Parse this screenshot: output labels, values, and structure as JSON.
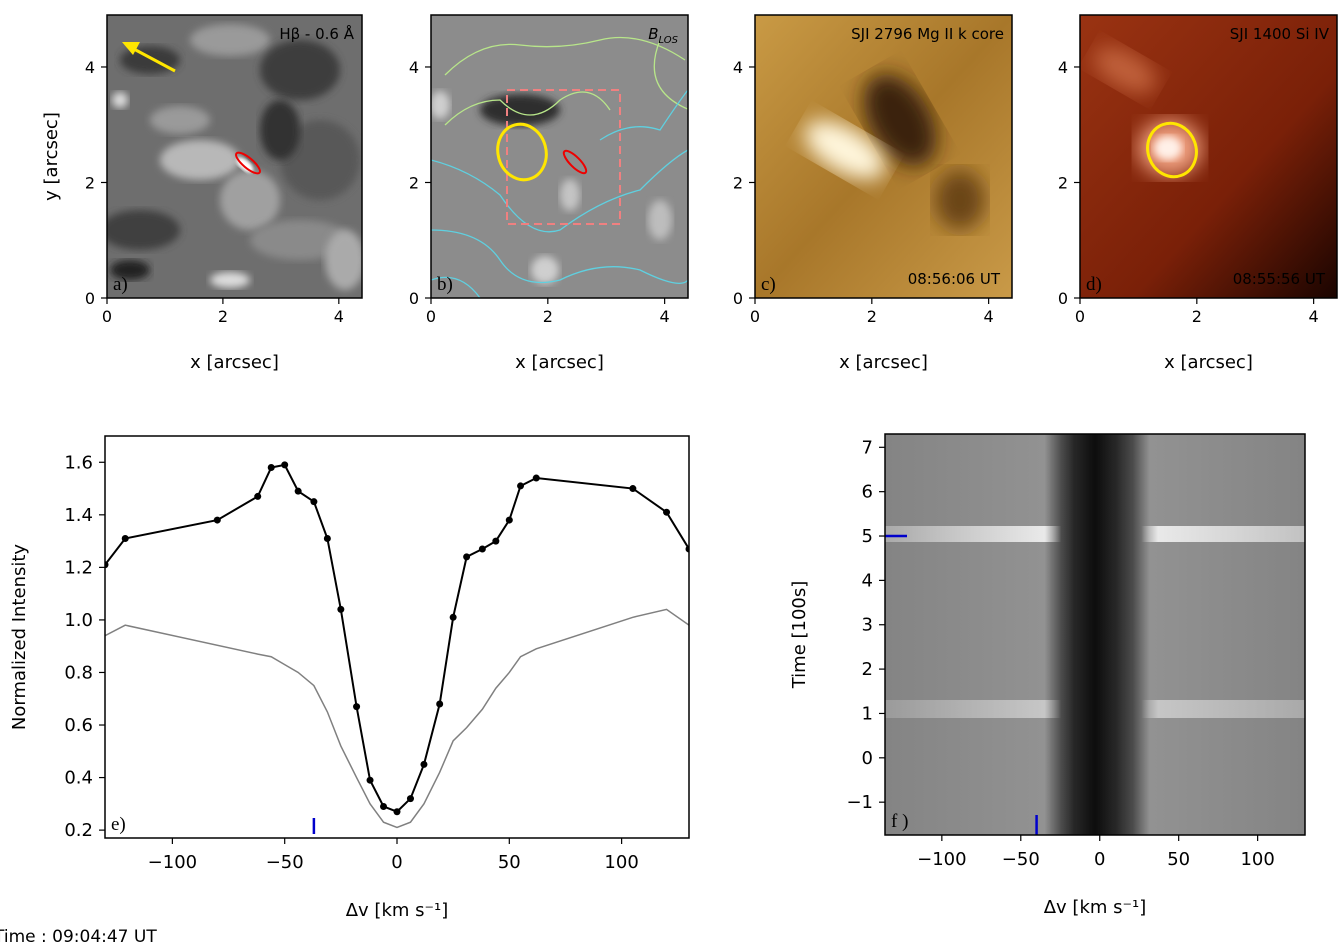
{
  "chart_data": [
    {
      "type": "image",
      "title": "Hβ - 0.6 Å",
      "panel_label": "a)",
      "xlabel": "x [arcsec]",
      "ylabel": "y [arcsec]",
      "xlim": [
        0,
        4.4
      ],
      "ylim": [
        0,
        4.9
      ],
      "xticks": [
        0,
        2,
        4
      ],
      "yticks": [
        0,
        2,
        4
      ]
    },
    {
      "type": "image",
      "title": {
        "text": "B",
        "subscript": "LOS"
      },
      "panel_label": "b)",
      "xlabel": "x [arcsec]",
      "xlim": [
        0,
        4.4
      ],
      "ylim": [
        0,
        4.9
      ],
      "xticks": [
        0,
        2,
        4
      ],
      "yticks": [
        0,
        2,
        4
      ]
    },
    {
      "type": "image",
      "title": "SJI 2796 Mg II k core",
      "timestamp": "08:56:06 UT",
      "panel_label": "c)",
      "xlabel": "x [arcsec]",
      "xlim": [
        0,
        4.4
      ],
      "ylim": [
        0,
        4.9
      ],
      "xticks": [
        0,
        2,
        4
      ],
      "yticks": [
        0,
        2,
        4
      ]
    },
    {
      "type": "image",
      "title": "SJI 1400 Si IV",
      "timestamp": "08:55:56 UT",
      "panel_label": "d)",
      "xlabel": "x [arcsec]",
      "xlim": [
        0,
        4.4
      ],
      "ylim": [
        0,
        4.9
      ],
      "xticks": [
        0,
        2,
        4
      ],
      "yticks": [
        0,
        2,
        4
      ]
    },
    {
      "type": "line",
      "panel_label": "e)",
      "xlabel": "Δv [km s⁻¹]",
      "ylabel": "Normalized Intensity",
      "xlim": [
        -130,
        130
      ],
      "ylim": [
        0.17,
        1.7
      ],
      "xticks": [
        {
          "value": -100,
          "label": "−100"
        },
        {
          "value": -50,
          "label": "−50"
        },
        0,
        50,
        100
      ],
      "yticks": [
        {
          "value": 0.2,
          "label": "0.2"
        },
        {
          "value": 0.4,
          "label": "0.4"
        },
        {
          "value": 0.6,
          "label": "0.6"
        },
        {
          "value": 0.8,
          "label": "0.8"
        },
        {
          "value": 1.0,
          "label": "1.0"
        },
        {
          "value": 1.2,
          "label": "1.2"
        },
        {
          "value": 1.4,
          "label": "1.4"
        },
        {
          "value": 1.6,
          "label": "1.6"
        }
      ],
      "marker_x": -37,
      "marker_color": "#0000cc",
      "series": [
        {
          "color": "#000000",
          "markers": true,
          "x": [
            -130,
            -121,
            -80,
            -62,
            -56,
            -50,
            -44,
            -37,
            -31,
            -25,
            -18,
            -12,
            -6,
            0,
            6,
            12,
            19,
            25,
            31,
            38,
            44,
            50,
            55,
            62,
            105,
            120,
            130
          ],
          "values": [
            1.21,
            1.31,
            1.38,
            1.47,
            1.58,
            1.59,
            1.49,
            1.45,
            1.31,
            1.04,
            0.67,
            0.39,
            0.29,
            0.27,
            0.32,
            0.45,
            0.68,
            1.01,
            1.24,
            1.27,
            1.3,
            1.38,
            1.51,
            1.54,
            1.5,
            1.41,
            1.27
          ]
        },
        {
          "color": "#808080",
          "markers": false,
          "x": [
            -130,
            -121,
            -62,
            -56,
            -50,
            -44,
            -37,
            -31,
            -25,
            -18,
            -12,
            -6,
            0,
            6,
            12,
            19,
            25,
            31,
            38,
            44,
            50,
            55,
            62,
            105,
            120,
            130
          ],
          "values": [
            0.94,
            0.98,
            0.87,
            0.86,
            0.83,
            0.8,
            0.75,
            0.65,
            0.52,
            0.4,
            0.3,
            0.23,
            0.21,
            0.23,
            0.3,
            0.42,
            0.54,
            0.59,
            0.66,
            0.74,
            0.8,
            0.86,
            0.89,
            1.01,
            1.04,
            0.98
          ]
        }
      ]
    },
    {
      "type": "heatmap",
      "panel_label": "f )",
      "xlabel": "Δv [km s⁻¹]",
      "ylabel": "Time [100s]",
      "xlim": [
        -136,
        130
      ],
      "ylim": [
        -1.74,
        7.3
      ],
      "xticks": [
        {
          "value": -100,
          "label": "−100"
        },
        {
          "value": -50,
          "label": "−50"
        },
        0,
        50,
        100
      ],
      "yticks": [
        {
          "value": -1,
          "label": "−1"
        },
        0,
        1,
        2,
        3,
        4,
        5,
        6,
        7
      ],
      "marker_x": -40,
      "marker_y": 5,
      "marker_color": "#0000cc"
    }
  ],
  "footer": "Time : 09:04:47 UT"
}
